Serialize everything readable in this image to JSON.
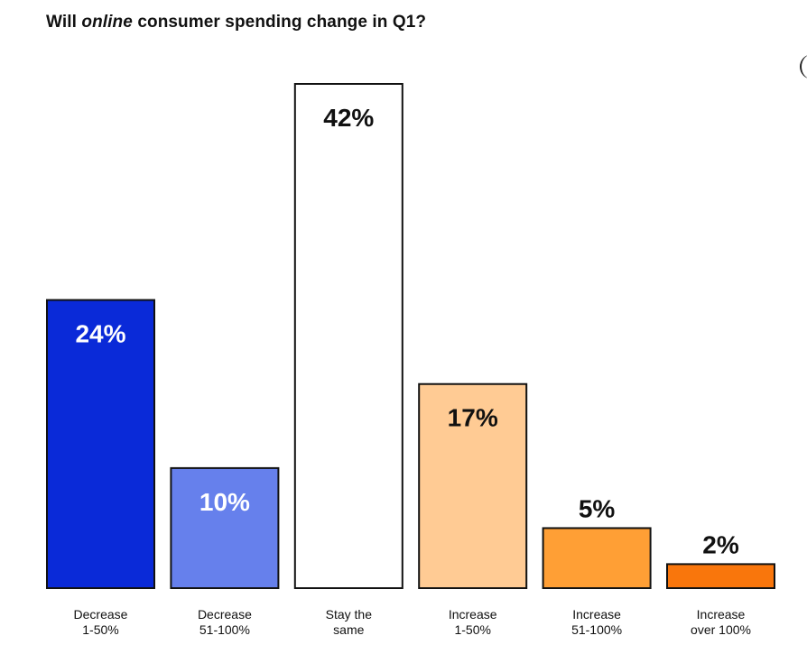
{
  "title": {
    "before": "Will ",
    "emphasis": "online",
    "after": " consumer spending change in Q1?"
  },
  "chart_data": {
    "type": "bar",
    "title": "Will online consumer spending change in Q1?",
    "categories": [
      [
        "Decrease",
        "1-50%"
      ],
      [
        "Decrease",
        "51-100%"
      ],
      [
        "Stay the",
        "same"
      ],
      [
        "Increase",
        "1-50%"
      ],
      [
        "Increase",
        "51-100%"
      ],
      [
        "Increase",
        "over 100%"
      ]
    ],
    "values": [
      24,
      10,
      42,
      17,
      5,
      2
    ],
    "value_labels": [
      "24%",
      "10%",
      "42%",
      "17%",
      "5%",
      "2%"
    ],
    "colors": [
      "#0a2ad8",
      "#6680ec",
      "#ffffff",
      "#ffcb94",
      "#ff9f35",
      "#f9760c"
    ],
    "label_colors": [
      "#ffffff",
      "#ffffff",
      "#111111",
      "#111111",
      "#111111",
      "#111111"
    ],
    "ylim": [
      0,
      42
    ],
    "grid": false,
    "legend": "none",
    "xlabel": "",
    "ylabel": ""
  }
}
